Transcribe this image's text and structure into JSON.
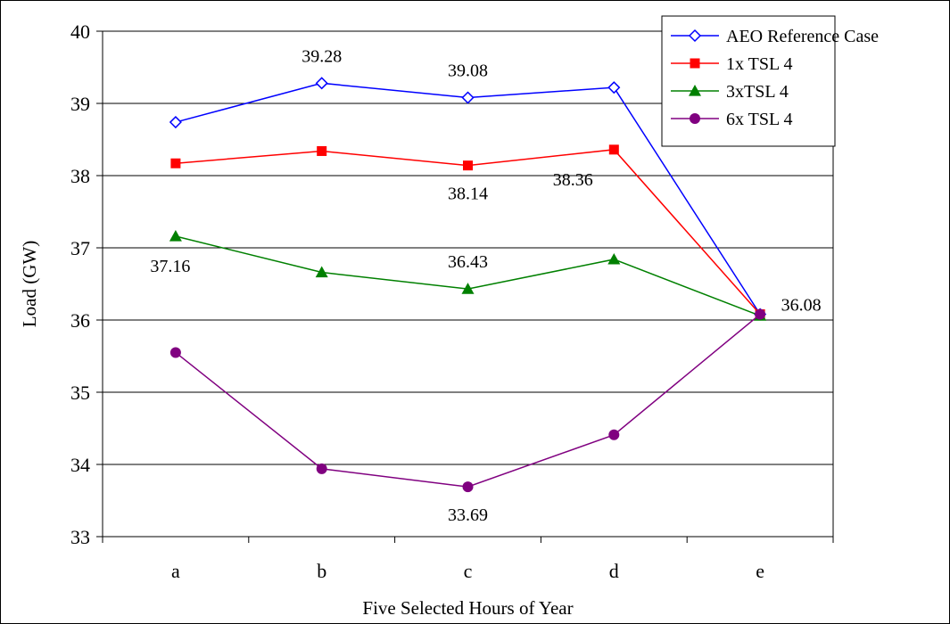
{
  "chart_data": {
    "type": "line",
    "title": "",
    "xlabel": "Five Selected Hours of Year",
    "ylabel": "Load (GW)",
    "categories": [
      "a",
      "b",
      "c",
      "d",
      "e"
    ],
    "ylim": [
      33,
      40
    ],
    "yticks": [
      33,
      34,
      35,
      36,
      37,
      38,
      39,
      40
    ],
    "grid": true,
    "legend_position": "top-right",
    "series": [
      {
        "name": "AEO Reference Case",
        "values": [
          38.74,
          39.28,
          39.08,
          39.22,
          36.08
        ],
        "color": "#0000ff",
        "marker": "diamond-open"
      },
      {
        "name": "1x TSL 4",
        "values": [
          38.17,
          38.34,
          38.14,
          38.36,
          36.08
        ],
        "color": "#ff0000",
        "marker": "square"
      },
      {
        "name": "3xTSL 4",
        "values": [
          37.16,
          36.66,
          36.43,
          36.84,
          36.06
        ],
        "color": "#008000",
        "marker": "triangle"
      },
      {
        "name": "6x TSL 4",
        "values": [
          35.55,
          33.94,
          33.69,
          34.41,
          36.08
        ],
        "color": "#800080",
        "marker": "circle"
      }
    ],
    "data_labels": [
      {
        "text": "39.28",
        "series": 0,
        "point": 1
      },
      {
        "text": "39.08",
        "series": 0,
        "point": 2
      },
      {
        "text": "38.14",
        "series": 1,
        "point": 2
      },
      {
        "text": "38.36",
        "series": 1,
        "point": 3
      },
      {
        "text": "37.16",
        "series": 2,
        "point": 0
      },
      {
        "text": "36.43",
        "series": 2,
        "point": 2
      },
      {
        "text": "33.69",
        "series": 3,
        "point": 2
      },
      {
        "text": "36.08",
        "series": 3,
        "point": 4
      }
    ]
  }
}
